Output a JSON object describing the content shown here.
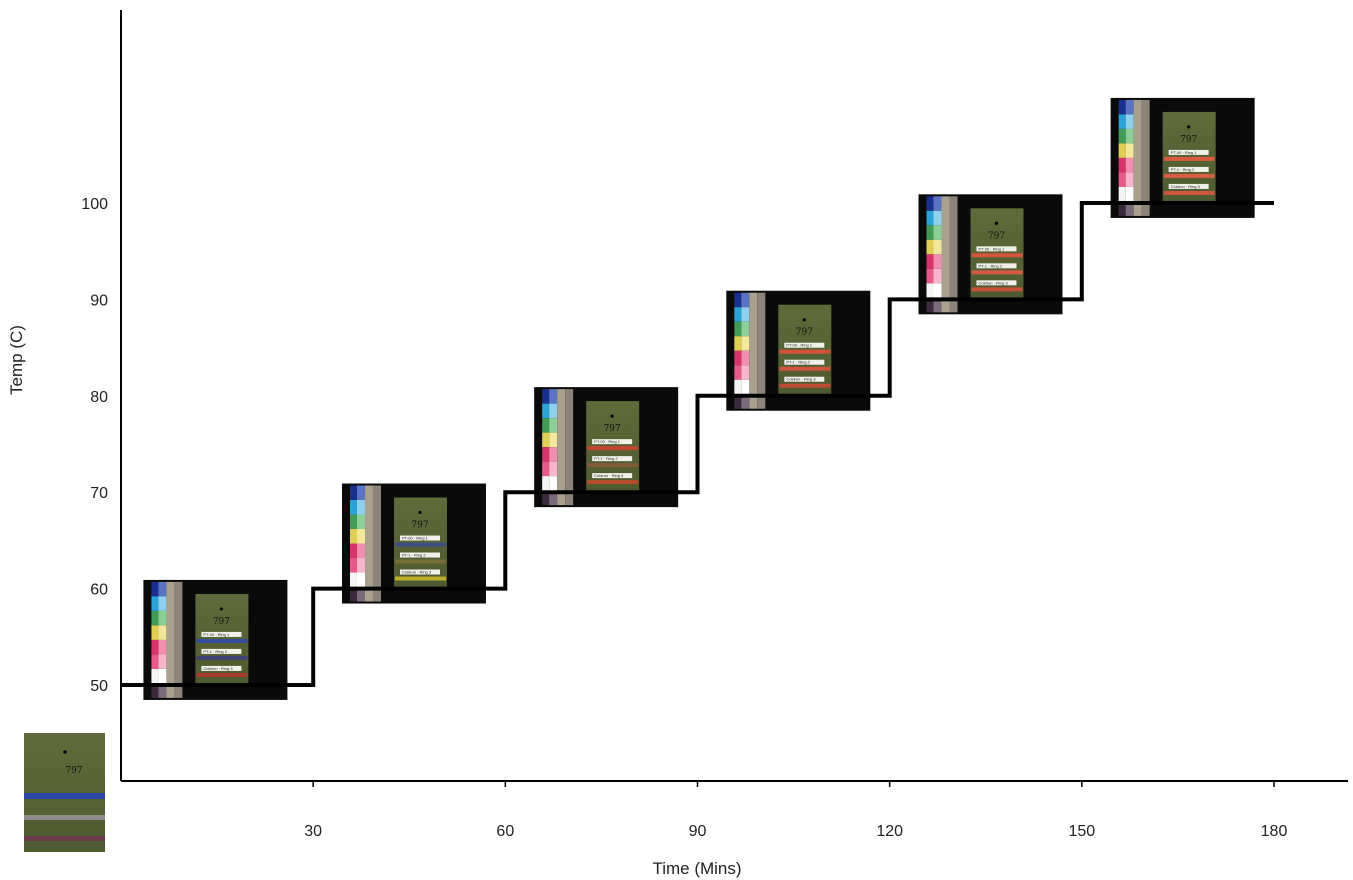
{
  "chart_data": {
    "type": "line",
    "step": true,
    "xlabel": "Time (Mins)",
    "ylabel": "Temp (C)",
    "x_ticks": [
      30,
      60,
      90,
      120,
      150,
      180
    ],
    "y_ticks": [
      50,
      60,
      70,
      80,
      90,
      100
    ],
    "xlim": [
      0,
      180
    ],
    "ylim": [
      40,
      100
    ],
    "series": [
      {
        "points": [
          [
            0,
            50
          ],
          [
            30,
            50
          ],
          [
            30,
            60
          ],
          [
            60,
            60
          ],
          [
            60,
            70
          ],
          [
            90,
            70
          ],
          [
            90,
            80
          ],
          [
            120,
            80
          ],
          [
            120,
            90
          ],
          [
            150,
            90
          ],
          [
            150,
            100
          ],
          [
            180,
            100
          ]
        ]
      }
    ],
    "grid": false,
    "line_color": "#000000",
    "sample_photos": {
      "count": 7,
      "number_text": "797",
      "label_rows": [
        "PT-00 · Ring 1",
        "PT-1 · Ring 2",
        "Coldrun · Ring 3"
      ],
      "card_color": "#5b6637",
      "background_color": "#0a0a0a"
    }
  }
}
